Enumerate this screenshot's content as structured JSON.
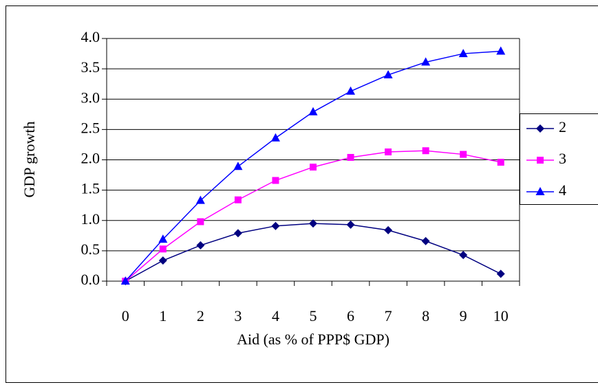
{
  "chart_data": {
    "type": "line",
    "y_label": "GDP growth",
    "x_label": "Aid (as % of PPP$ GDP)",
    "categories": [
      "0",
      "1",
      "2",
      "3",
      "4",
      "5",
      "6",
      "7",
      "8",
      "9",
      "10"
    ],
    "series": [
      {
        "name": "2",
        "color": "#000080",
        "marker": "diamond",
        "values": [
          0,
          0.34,
          0.59,
          0.79,
          0.91,
          0.95,
          0.93,
          0.84,
          0.66,
          0.43,
          0.12
        ]
      },
      {
        "name": "3",
        "color": "#ff00ff",
        "marker": "square",
        "values": [
          0,
          0.53,
          0.98,
          1.34,
          1.66,
          1.88,
          2.04,
          2.13,
          2.15,
          2.09,
          1.96
        ]
      },
      {
        "name": "4",
        "color": "#0000ff",
        "marker": "triangle",
        "values": [
          0,
          0.69,
          1.33,
          1.89,
          2.36,
          2.79,
          3.13,
          3.4,
          3.61,
          3.75,
          3.79
        ]
      }
    ],
    "ylim": [
      0,
      4
    ],
    "yticks": [
      {
        "value": 0,
        "label": "0.0"
      },
      0.5,
      {
        "value": 1,
        "label": "1.0"
      },
      1.5,
      {
        "value": 2,
        "label": "2.0"
      },
      2.5,
      {
        "value": 3,
        "label": "3.0"
      },
      3.5,
      {
        "value": 4,
        "label": "4.0"
      }
    ],
    "grid": true,
    "legend": "right"
  }
}
